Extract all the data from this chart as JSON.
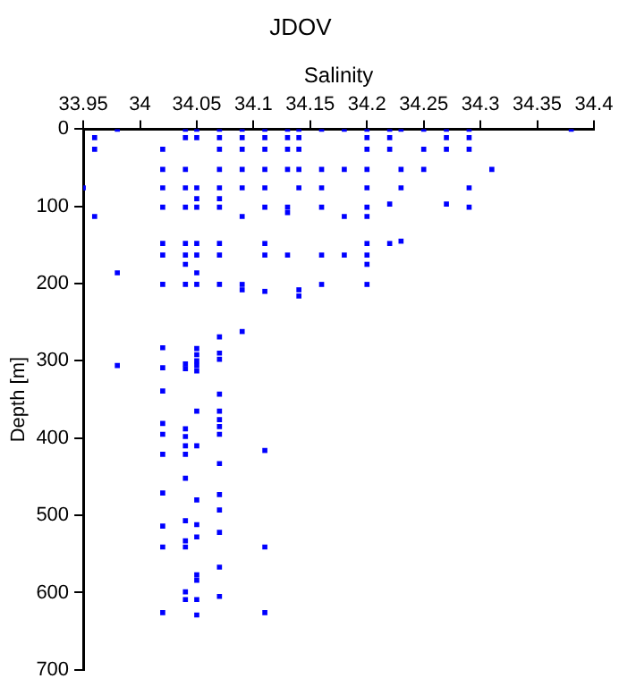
{
  "chart_data": {
    "type": "scatter",
    "title": "JDOV",
    "xlabel": "Salinity",
    "ylabel": "Depth [m]",
    "xlim": [
      33.95,
      34.4
    ],
    "xticks": [
      33.95,
      34,
      34.05,
      34.1,
      34.15,
      34.2,
      34.25,
      34.3,
      34.35,
      34.4
    ],
    "ylim": [
      700,
      0
    ],
    "yticks": [
      0,
      100,
      200,
      300,
      400,
      500,
      600,
      700
    ],
    "grid": false,
    "legend": false,
    "marker": "square",
    "series": [
      {
        "color": "#0000ff",
        "x": [
          33.98,
          34.04,
          34.05,
          34.07,
          34.09,
          34.11,
          34.13,
          34.14,
          34.16,
          34.18,
          34.2,
          34.22,
          34.23,
          34.25,
          34.27,
          34.29,
          34.38,
          33.96,
          34.04,
          34.05,
          34.07,
          34.09,
          34.11,
          34.13,
          34.14,
          34.2,
          34.22,
          34.27,
          34.29,
          33.96,
          34.02,
          34.07,
          34.09,
          34.11,
          34.13,
          34.14,
          34.2,
          34.22,
          34.25,
          34.27,
          34.29,
          34.02,
          34.04,
          34.07,
          34.09,
          34.11,
          34.13,
          34.14,
          34.16,
          34.18,
          34.2,
          34.23,
          34.25,
          34.31,
          33.95,
          34.02,
          34.04,
          34.05,
          34.07,
          34.09,
          34.11,
          34.14,
          34.16,
          34.2,
          34.23,
          34.29,
          34.07,
          34.05,
          34.02,
          34.04,
          34.05,
          34.07,
          34.11,
          34.13,
          34.16,
          34.2,
          34.29,
          34.22,
          34.27,
          33.96,
          34.09,
          34.18,
          34.2,
          34.13,
          34.02,
          34.04,
          34.05,
          34.07,
          34.11,
          34.2,
          34.22,
          34.23,
          34.02,
          34.04,
          34.05,
          34.07,
          34.11,
          34.13,
          34.16,
          34.18,
          34.2,
          34.04,
          34.2,
          33.98,
          34.05,
          34.02,
          34.04,
          34.05,
          34.07,
          34.09,
          34.16,
          34.2,
          34.09,
          34.11,
          34.14,
          34.14,
          34.09,
          34.07,
          34.07,
          34.07,
          34.07,
          34.07,
          34.07,
          34.07,
          34.07,
          34.07,
          34.07,
          34.07,
          34.07,
          34.07,
          34.07,
          34.02,
          34.02,
          34.02,
          34.02,
          34.02,
          34.02,
          34.02,
          34.02,
          34.02,
          34.02,
          34.04,
          34.04,
          34.04,
          34.04,
          34.04,
          34.04,
          34.04,
          34.04,
          34.04,
          34.04,
          34.04,
          34.04,
          34.05,
          34.05,
          34.05,
          34.05,
          34.05,
          34.05,
          34.05,
          34.05,
          34.05,
          34.05,
          34.05,
          34.05,
          34.05,
          34.05,
          33.98,
          34.11,
          34.11,
          34.11
        ],
        "values": [
          0,
          0,
          0,
          0,
          0,
          0,
          0,
          0,
          0,
          0,
          0,
          0,
          0,
          0,
          0,
          0,
          0,
          11,
          11,
          11,
          11,
          11,
          11,
          11,
          11,
          11,
          11,
          11,
          11,
          26,
          26,
          26,
          26,
          26,
          26,
          26,
          26,
          26,
          26,
          26,
          26,
          52,
          52,
          52,
          52,
          52,
          52,
          52,
          52,
          52,
          52,
          52,
          52,
          52,
          76,
          76,
          76,
          76,
          76,
          76,
          76,
          76,
          76,
          76,
          76,
          76,
          90,
          90,
          101,
          101,
          101,
          101,
          101,
          101,
          101,
          101,
          101,
          97,
          97,
          113,
          113,
          113,
          113,
          108,
          148,
          148,
          148,
          148,
          148,
          148,
          148,
          145,
          163,
          163,
          163,
          163,
          163,
          163,
          163,
          163,
          163,
          175,
          175,
          186,
          186,
          201,
          201,
          201,
          201,
          201,
          201,
          201,
          208,
          210,
          208,
          216,
          262,
          269,
          290,
          298,
          343,
          365,
          376,
          385,
          395,
          433,
          473,
          493,
          522,
          567,
          605,
          283,
          309,
          339,
          381,
          395,
          421,
          471,
          514,
          541,
          626,
          304,
          310,
          388,
          398,
          410,
          421,
          452,
          507,
          533,
          541,
          599,
          609,
          284,
          292,
          300,
          306,
          313,
          365,
          410,
          480,
          512,
          528,
          577,
          584,
          609,
          629,
          306,
          416,
          541,
          626
        ]
      }
    ]
  }
}
